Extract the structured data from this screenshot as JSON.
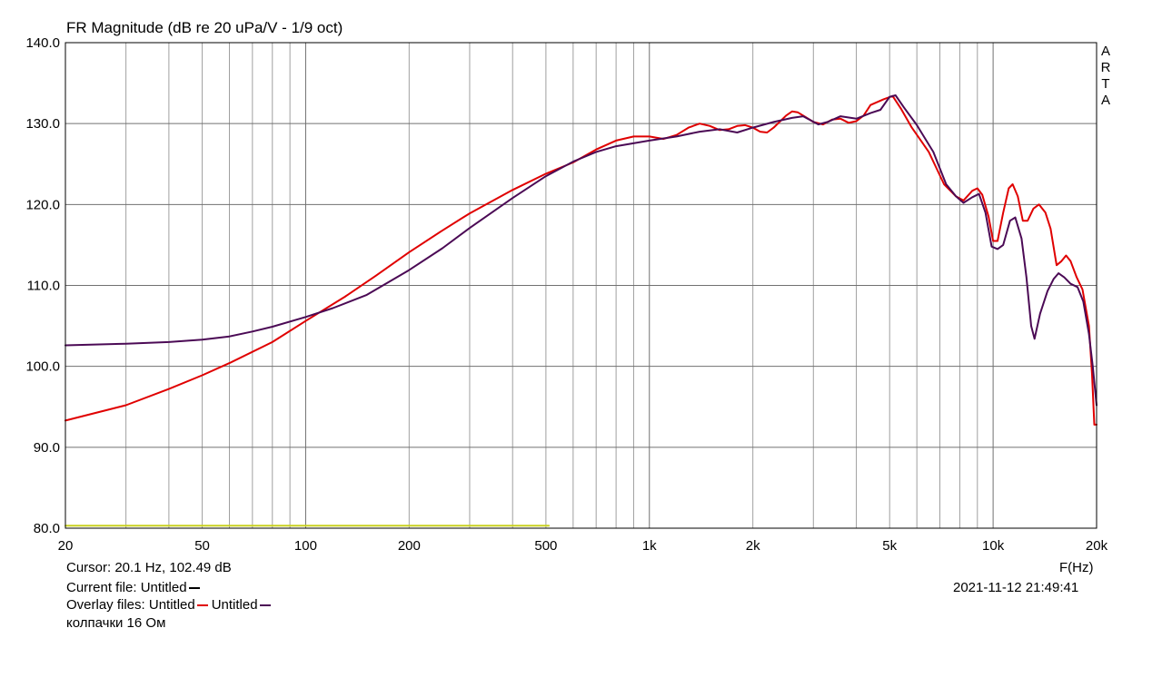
{
  "header": {
    "title": "FR Magnitude (dB re 20 uPa/V - 1/9 oct)",
    "brand_letters": [
      "A",
      "R",
      "T",
      "A"
    ]
  },
  "footer": {
    "cursor": "Cursor: 20.1 Hz, 102.49 dB",
    "axis_unit": "F(Hz)",
    "current_file_label": "Current file: Untitled",
    "overlay_label": "Overlay files: Untitled",
    "overlay_second": "Untitled",
    "timestamp": "2021-11-12  21:49:41",
    "note": "колпачки 16 Ом"
  },
  "colors": {
    "current": "#000000",
    "overlay_red": "#e00000",
    "overlay_purple": "#4b0a55",
    "reference": "#c8d020",
    "grid": "#a0a0a0",
    "frame": "#000000"
  },
  "chart_data": {
    "type": "line",
    "title": "FR Magnitude (dB re 20 uPa/V - 1/9 oct)",
    "xlabel": "F(Hz)",
    "ylabel": "",
    "xscale": "log",
    "xlim": [
      20,
      20000
    ],
    "ylim": [
      80,
      140
    ],
    "x_ticks": [
      20,
      50,
      100,
      200,
      500,
      1000,
      2000,
      5000,
      10000,
      20000
    ],
    "x_tick_labels": [
      "20",
      "50",
      "100",
      "200",
      "500",
      "1k",
      "2k",
      "5k",
      "10k",
      "20k"
    ],
    "y_ticks": [
      80,
      90,
      100,
      110,
      120,
      130,
      140
    ],
    "y_tick_labels": [
      "80.0",
      "90.0",
      "100.0",
      "110.0",
      "120.0",
      "130.0",
      "140.0"
    ],
    "grid": true,
    "series": [
      {
        "name": "Untitled",
        "color": "#e00000",
        "points": [
          [
            20,
            93.3
          ],
          [
            30,
            95.2
          ],
          [
            40,
            97.2
          ],
          [
            50,
            98.9
          ],
          [
            60,
            100.4
          ],
          [
            80,
            103.0
          ],
          [
            100,
            105.6
          ],
          [
            130,
            108.6
          ],
          [
            160,
            111.2
          ],
          [
            200,
            114.1
          ],
          [
            250,
            116.8
          ],
          [
            300,
            118.9
          ],
          [
            400,
            121.8
          ],
          [
            500,
            123.8
          ],
          [
            600,
            125.2
          ],
          [
            700,
            126.8
          ],
          [
            800,
            127.9
          ],
          [
            900,
            128.4
          ],
          [
            1000,
            128.4
          ],
          [
            1100,
            128.1
          ],
          [
            1200,
            128.6
          ],
          [
            1300,
            129.5
          ],
          [
            1400,
            130.0
          ],
          [
            1500,
            129.7
          ],
          [
            1600,
            129.2
          ],
          [
            1700,
            129.3
          ],
          [
            1800,
            129.7
          ],
          [
            1900,
            129.8
          ],
          [
            2000,
            129.5
          ],
          [
            2100,
            129.0
          ],
          [
            2200,
            128.9
          ],
          [
            2300,
            129.5
          ],
          [
            2500,
            131.0
          ],
          [
            2600,
            131.5
          ],
          [
            2700,
            131.4
          ],
          [
            2800,
            131.0
          ],
          [
            3000,
            130.2
          ],
          [
            3200,
            129.9
          ],
          [
            3400,
            130.5
          ],
          [
            3600,
            130.6
          ],
          [
            3800,
            130.1
          ],
          [
            4000,
            130.3
          ],
          [
            4200,
            131.0
          ],
          [
            4400,
            132.3
          ],
          [
            4800,
            133.0
          ],
          [
            5100,
            133.4
          ],
          [
            5400,
            131.8
          ],
          [
            5800,
            129.5
          ],
          [
            6500,
            126.5
          ],
          [
            7200,
            122.5
          ],
          [
            7800,
            121.0
          ],
          [
            8200,
            120.5
          ],
          [
            8700,
            121.7
          ],
          [
            9000,
            122.0
          ],
          [
            9300,
            121.2
          ],
          [
            9700,
            118.5
          ],
          [
            10000,
            115.5
          ],
          [
            10300,
            115.5
          ],
          [
            10700,
            119.0
          ],
          [
            11100,
            122.0
          ],
          [
            11400,
            122.5
          ],
          [
            11800,
            121.0
          ],
          [
            12200,
            118.0
          ],
          [
            12600,
            118.0
          ],
          [
            13100,
            119.5
          ],
          [
            13600,
            120.0
          ],
          [
            14200,
            119.0
          ],
          [
            14700,
            117.0
          ],
          [
            15300,
            112.5
          ],
          [
            15800,
            113.0
          ],
          [
            16300,
            113.7
          ],
          [
            16800,
            113.0
          ],
          [
            17500,
            111.0
          ],
          [
            18200,
            109.5
          ],
          [
            19000,
            105.0
          ],
          [
            19400,
            99.0
          ],
          [
            19700,
            92.8
          ],
          [
            20000,
            92.8
          ]
        ]
      },
      {
        "name": "Untitled",
        "color": "#4b0a55",
        "points": [
          [
            20,
            102.6
          ],
          [
            30,
            102.8
          ],
          [
            40,
            103.0
          ],
          [
            50,
            103.3
          ],
          [
            60,
            103.7
          ],
          [
            70,
            104.3
          ],
          [
            80,
            104.9
          ],
          [
            100,
            106.1
          ],
          [
            120,
            107.2
          ],
          [
            150,
            108.8
          ],
          [
            200,
            111.9
          ],
          [
            250,
            114.6
          ],
          [
            300,
            117.1
          ],
          [
            400,
            120.8
          ],
          [
            500,
            123.5
          ],
          [
            600,
            125.3
          ],
          [
            700,
            126.5
          ],
          [
            800,
            127.2
          ],
          [
            1000,
            127.9
          ],
          [
            1200,
            128.4
          ],
          [
            1400,
            129.0
          ],
          [
            1600,
            129.3
          ],
          [
            1800,
            128.9
          ],
          [
            2000,
            129.5
          ],
          [
            2300,
            130.2
          ],
          [
            2600,
            130.7
          ],
          [
            2800,
            130.9
          ],
          [
            3100,
            129.9
          ],
          [
            3300,
            130.2
          ],
          [
            3600,
            130.9
          ],
          [
            4000,
            130.6
          ],
          [
            4400,
            131.3
          ],
          [
            4700,
            131.7
          ],
          [
            5000,
            133.3
          ],
          [
            5200,
            133.5
          ],
          [
            5500,
            132.0
          ],
          [
            6000,
            129.8
          ],
          [
            6700,
            126.5
          ],
          [
            7300,
            122.5
          ],
          [
            7800,
            121.0
          ],
          [
            8200,
            120.2
          ],
          [
            8700,
            120.9
          ],
          [
            9100,
            121.3
          ],
          [
            9500,
            119.0
          ],
          [
            9900,
            114.8
          ],
          [
            10300,
            114.5
          ],
          [
            10700,
            115.0
          ],
          [
            11200,
            118.0
          ],
          [
            11600,
            118.4
          ],
          [
            12100,
            115.8
          ],
          [
            12500,
            111.0
          ],
          [
            12900,
            105.0
          ],
          [
            13200,
            103.4
          ],
          [
            13700,
            106.5
          ],
          [
            14400,
            109.3
          ],
          [
            15000,
            110.8
          ],
          [
            15500,
            111.5
          ],
          [
            16100,
            111.0
          ],
          [
            16800,
            110.2
          ],
          [
            17600,
            109.8
          ],
          [
            18300,
            108.0
          ],
          [
            19000,
            104.0
          ],
          [
            19500,
            100.0
          ],
          [
            20000,
            95.2
          ]
        ]
      },
      {
        "name": "",
        "color": "#c8d020",
        "points": [
          [
            20,
            80.3
          ],
          [
            510,
            80.3
          ]
        ]
      }
    ]
  }
}
